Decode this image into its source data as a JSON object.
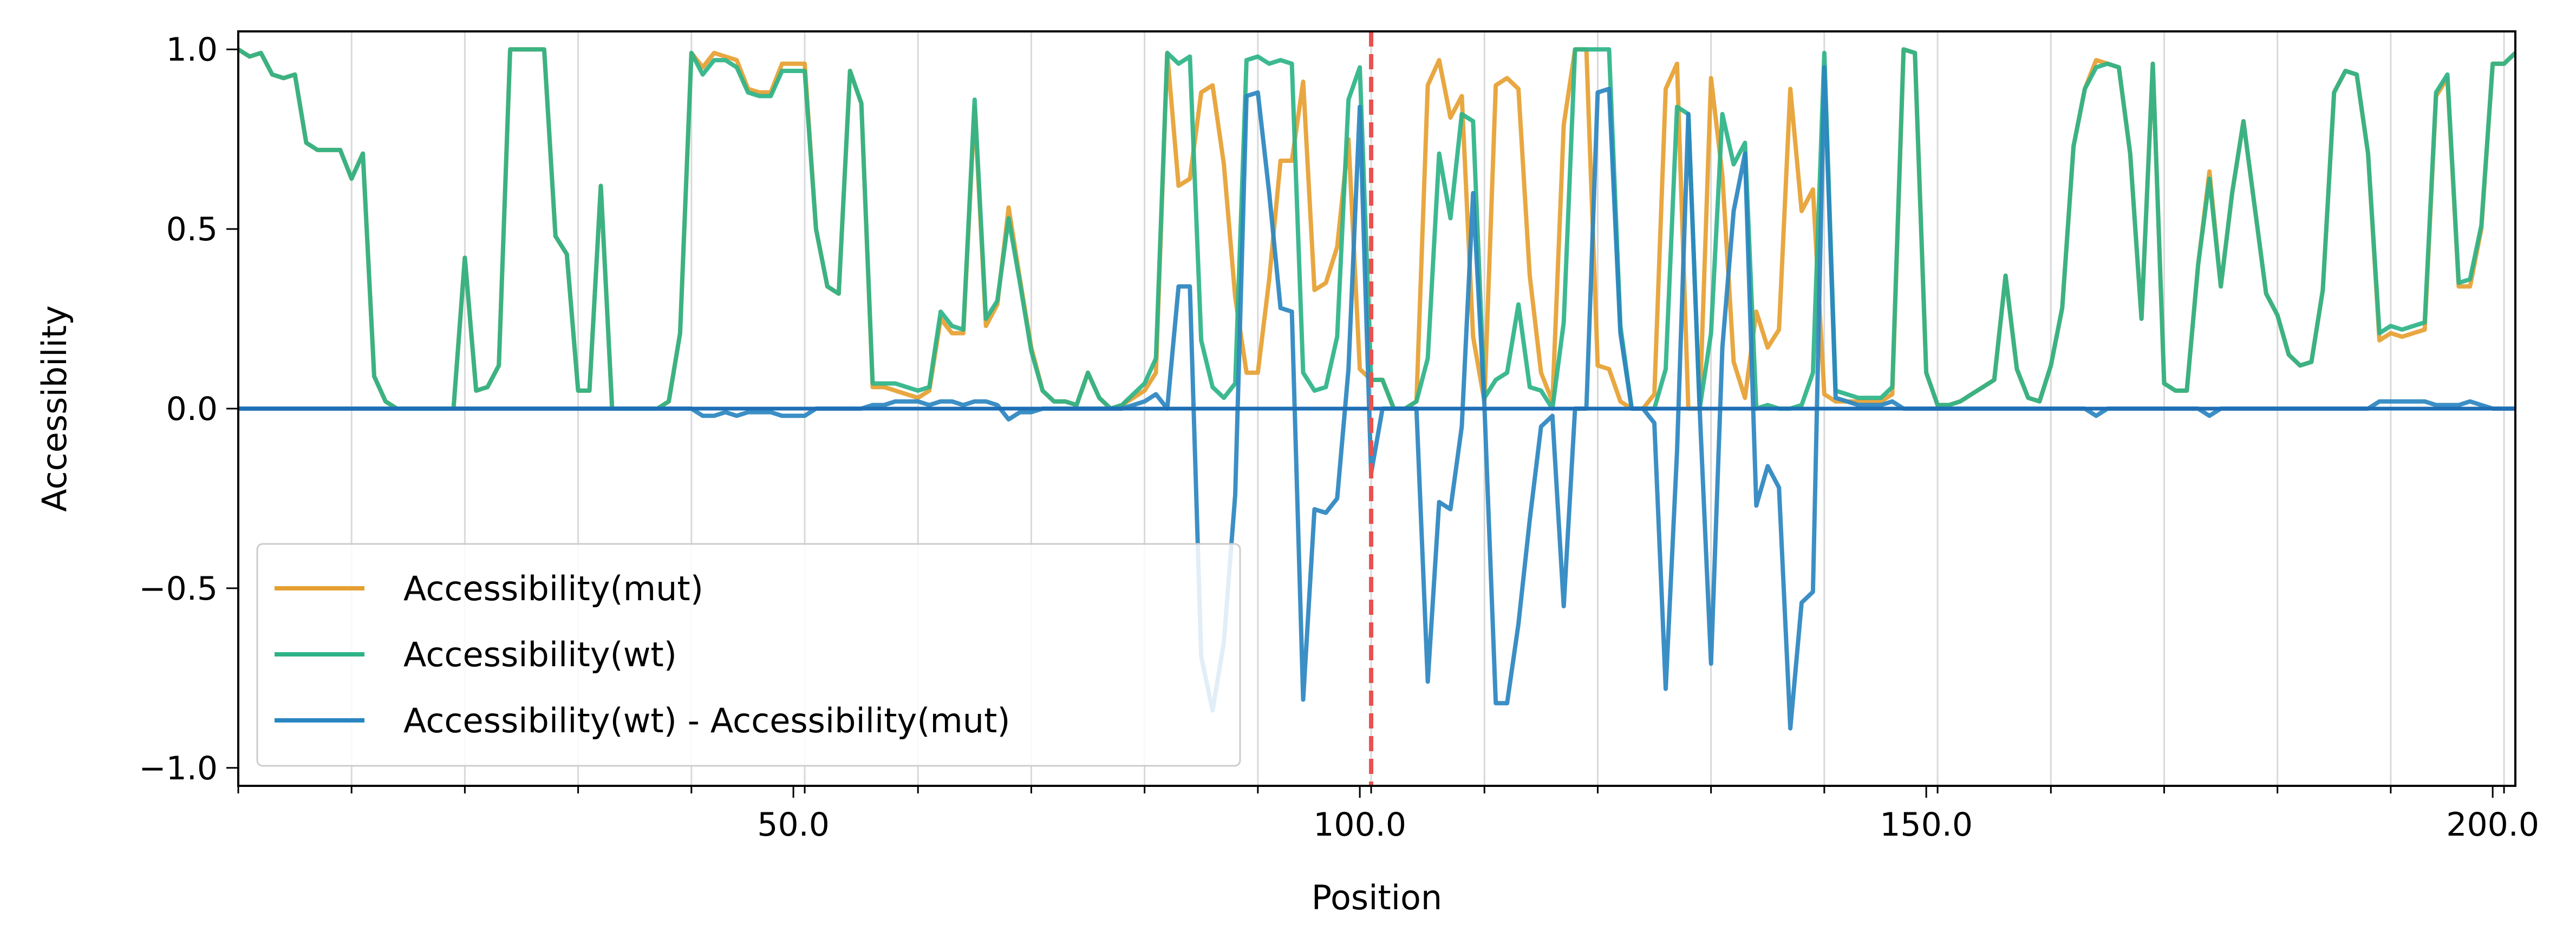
{
  "chart_data": {
    "type": "line",
    "title": "",
    "xlabel": "Position",
    "ylabel": "Accessibility",
    "xlim": [
      1,
      202
    ],
    "ylim": [
      -1.05,
      1.05
    ],
    "x_ticks": [
      50,
      100,
      150,
      200
    ],
    "x_tick_labels": [
      "50.0",
      "100.0",
      "150.0",
      "200.0"
    ],
    "x_minor_ticks": [
      1,
      11,
      21,
      31,
      41,
      51,
      61,
      71,
      81,
      91,
      101,
      111,
      121,
      131,
      141,
      151,
      161,
      171,
      181,
      191,
      201
    ],
    "y_ticks": [
      -1.0,
      -0.5,
      0.0,
      0.5,
      1.0
    ],
    "y_tick_labels": [
      "−1.0",
      "−0.5",
      "0.0",
      "0.5",
      "1.0"
    ],
    "grid": "vertical lines at x minor ticks",
    "legend_position": "lower-left",
    "mutation_position": 101,
    "mutation_line_color": "#e8524f",
    "series": [
      {
        "name": "Accessibility(mut)",
        "color": "#e69f31",
        "x": [
          1,
          2,
          3,
          4,
          5,
          6,
          7,
          8,
          9,
          10,
          11,
          12,
          13,
          14,
          15,
          16,
          17,
          18,
          19,
          20,
          21,
          22,
          23,
          24,
          25,
          26,
          27,
          28,
          29,
          30,
          31,
          32,
          33,
          34,
          35,
          36,
          37,
          38,
          39,
          40,
          41,
          42,
          43,
          44,
          45,
          46,
          47,
          48,
          49,
          50,
          51,
          52,
          53,
          54,
          55,
          56,
          57,
          58,
          59,
          60,
          61,
          62,
          63,
          64,
          65,
          66,
          67,
          68,
          69,
          70,
          71,
          72,
          73,
          74,
          75,
          76,
          77,
          78,
          79,
          80,
          81,
          82,
          83,
          84,
          85,
          86,
          87,
          88,
          89,
          90,
          91,
          92,
          93,
          94,
          95,
          96,
          97,
          98,
          99,
          100,
          101,
          102,
          103,
          104,
          105,
          106,
          107,
          108,
          109,
          110,
          111,
          112,
          113,
          114,
          115,
          116,
          117,
          118,
          119,
          120,
          121,
          122,
          123,
          124,
          125,
          126,
          127,
          128,
          129,
          130,
          131,
          132,
          133,
          134,
          135,
          136,
          137,
          138,
          139,
          140,
          141,
          142,
          143,
          144,
          145,
          146,
          147,
          148,
          149,
          150,
          151,
          152,
          153,
          154,
          155,
          156,
          157,
          158,
          159,
          160,
          161,
          162,
          163,
          164,
          165,
          166,
          167,
          168,
          169,
          170,
          171,
          172,
          173,
          174,
          175,
          176,
          177,
          178,
          179,
          180,
          181,
          182,
          183,
          184,
          185,
          186,
          187,
          188,
          189,
          190,
          191,
          192,
          193,
          194,
          195,
          196,
          197,
          198,
          199,
          200,
          201,
          202
        ],
        "values": [
          1.0,
          0.98,
          0.99,
          0.93,
          0.92,
          0.93,
          0.74,
          0.72,
          0.72,
          0.72,
          0.64,
          0.71,
          0.09,
          0.02,
          0.0,
          0.0,
          0.0,
          0.0,
          0.0,
          0.0,
          0.42,
          0.05,
          0.06,
          0.12,
          1.0,
          1.0,
          1.0,
          1.0,
          0.48,
          0.43,
          0.05,
          0.05,
          0.62,
          0.0,
          0.0,
          0.0,
          0.0,
          0.0,
          0.02,
          0.21,
          0.99,
          0.95,
          0.99,
          0.98,
          0.97,
          0.89,
          0.88,
          0.88,
          0.96,
          0.96,
          0.96,
          0.5,
          0.34,
          0.32,
          0.94,
          0.85,
          0.06,
          0.06,
          0.05,
          0.04,
          0.03,
          0.05,
          0.25,
          0.21,
          0.21,
          0.84,
          0.23,
          0.29,
          0.56,
          0.36,
          0.17,
          0.05,
          0.02,
          0.02,
          0.01,
          0.1,
          0.03,
          0.0,
          0.01,
          0.03,
          0.05,
          0.1,
          0.99,
          0.62,
          0.64,
          0.88,
          0.9,
          0.68,
          0.31,
          0.1,
          0.1,
          0.36,
          0.69,
          0.69,
          0.91,
          0.33,
          0.35,
          0.45,
          0.75,
          0.11,
          0.08,
          0.08,
          0.0,
          0.0,
          0.02,
          0.9,
          0.97,
          0.81,
          0.87,
          0.2,
          0.02,
          0.9,
          0.92,
          0.89,
          0.37,
          0.1,
          0.02,
          0.79,
          1.0,
          1.0,
          0.12,
          0.11,
          0.02,
          0.0,
          0.0,
          0.04,
          0.89,
          0.96,
          0.0,
          0.0,
          0.92,
          0.65,
          0.13,
          0.03,
          0.27,
          0.17,
          0.22,
          0.89,
          0.55,
          0.61,
          0.04,
          0.02,
          0.02,
          0.02,
          0.02,
          0.02,
          0.04,
          1.0,
          0.99,
          0.1,
          0.01,
          0.01,
          0.02,
          0.04,
          0.06,
          0.08,
          0.37,
          0.11,
          0.03,
          0.02,
          0.12,
          0.28,
          0.73,
          0.89,
          0.97,
          0.96,
          0.95,
          0.71,
          0.25,
          0.96,
          0.07,
          0.05,
          0.05,
          0.4,
          0.66,
          0.34,
          0.6,
          0.8,
          0.56,
          0.32,
          0.26,
          0.15,
          0.12,
          0.13,
          0.33,
          0.88,
          0.94,
          0.93,
          0.71,
          0.19,
          0.21,
          0.2,
          0.21,
          0.22,
          0.87,
          0.92,
          0.34,
          0.34,
          0.5,
          0.96,
          0.96,
          0.99
        ]
      },
      {
        "name": "Accessibility(wt)",
        "color": "#2db388",
        "x": [
          1,
          2,
          3,
          4,
          5,
          6,
          7,
          8,
          9,
          10,
          11,
          12,
          13,
          14,
          15,
          16,
          17,
          18,
          19,
          20,
          21,
          22,
          23,
          24,
          25,
          26,
          27,
          28,
          29,
          30,
          31,
          32,
          33,
          34,
          35,
          36,
          37,
          38,
          39,
          40,
          41,
          42,
          43,
          44,
          45,
          46,
          47,
          48,
          49,
          50,
          51,
          52,
          53,
          54,
          55,
          56,
          57,
          58,
          59,
          60,
          61,
          62,
          63,
          64,
          65,
          66,
          67,
          68,
          69,
          70,
          71,
          72,
          73,
          74,
          75,
          76,
          77,
          78,
          79,
          80,
          81,
          82,
          83,
          84,
          85,
          86,
          87,
          88,
          89,
          90,
          91,
          92,
          93,
          94,
          95,
          96,
          97,
          98,
          99,
          100,
          101,
          102,
          103,
          104,
          105,
          106,
          107,
          108,
          109,
          110,
          111,
          112,
          113,
          114,
          115,
          116,
          117,
          118,
          119,
          120,
          121,
          122,
          123,
          124,
          125,
          126,
          127,
          128,
          129,
          130,
          131,
          132,
          133,
          134,
          135,
          136,
          137,
          138,
          139,
          140,
          141,
          142,
          143,
          144,
          145,
          146,
          147,
          148,
          149,
          150,
          151,
          152,
          153,
          154,
          155,
          156,
          157,
          158,
          159,
          160,
          161,
          162,
          163,
          164,
          165,
          166,
          167,
          168,
          169,
          170,
          171,
          172,
          173,
          174,
          175,
          176,
          177,
          178,
          179,
          180,
          181,
          182,
          183,
          184,
          185,
          186,
          187,
          188,
          189,
          190,
          191,
          192,
          193,
          194,
          195,
          196,
          197,
          198,
          199,
          200,
          201,
          202
        ],
        "values": [
          1.0,
          0.98,
          0.99,
          0.93,
          0.92,
          0.93,
          0.74,
          0.72,
          0.72,
          0.72,
          0.64,
          0.71,
          0.09,
          0.02,
          0.0,
          0.0,
          0.0,
          0.0,
          0.0,
          0.0,
          0.42,
          0.05,
          0.06,
          0.12,
          1.0,
          1.0,
          1.0,
          1.0,
          0.48,
          0.43,
          0.05,
          0.05,
          0.62,
          0.0,
          0.0,
          0.0,
          0.0,
          0.0,
          0.02,
          0.21,
          0.99,
          0.93,
          0.97,
          0.97,
          0.95,
          0.88,
          0.87,
          0.87,
          0.94,
          0.94,
          0.94,
          0.5,
          0.34,
          0.32,
          0.94,
          0.85,
          0.07,
          0.07,
          0.07,
          0.06,
          0.05,
          0.06,
          0.27,
          0.23,
          0.22,
          0.86,
          0.25,
          0.3,
          0.53,
          0.35,
          0.16,
          0.05,
          0.02,
          0.02,
          0.01,
          0.1,
          0.03,
          0.0,
          0.01,
          0.04,
          0.07,
          0.14,
          0.99,
          0.96,
          0.98,
          0.19,
          0.06,
          0.03,
          0.07,
          0.97,
          0.98,
          0.96,
          0.97,
          0.96,
          0.1,
          0.05,
          0.06,
          0.2,
          0.86,
          0.95,
          0.08,
          0.08,
          0.0,
          0.0,
          0.02,
          0.14,
          0.71,
          0.53,
          0.82,
          0.8,
          0.03,
          0.08,
          0.1,
          0.29,
          0.06,
          0.05,
          0.0,
          0.24,
          1.0,
          1.0,
          1.0,
          1.0,
          0.23,
          0.0,
          0.0,
          0.0,
          0.11,
          0.84,
          0.82,
          0.0,
          0.21,
          0.82,
          0.68,
          0.74,
          0.0,
          0.01,
          0.0,
          0.0,
          0.01,
          0.1,
          0.99,
          0.05,
          0.04,
          0.03,
          0.03,
          0.03,
          0.06,
          1.0,
          0.99,
          0.1,
          0.01,
          0.01,
          0.02,
          0.04,
          0.06,
          0.08,
          0.37,
          0.11,
          0.03,
          0.02,
          0.12,
          0.28,
          0.73,
          0.89,
          0.95,
          0.96,
          0.95,
          0.71,
          0.25,
          0.96,
          0.07,
          0.05,
          0.05,
          0.4,
          0.64,
          0.34,
          0.6,
          0.8,
          0.56,
          0.32,
          0.26,
          0.15,
          0.12,
          0.13,
          0.33,
          0.88,
          0.94,
          0.93,
          0.71,
          0.21,
          0.23,
          0.22,
          0.23,
          0.24,
          0.88,
          0.93,
          0.35,
          0.36,
          0.51,
          0.96,
          0.96,
          0.99
        ]
      },
      {
        "name": "Accessibility(wt) - Accessibility(mut)",
        "color": "#2a86c0",
        "x": [
          1,
          2,
          3,
          4,
          5,
          6,
          7,
          8,
          9,
          10,
          11,
          12,
          13,
          14,
          15,
          16,
          17,
          18,
          19,
          20,
          21,
          22,
          23,
          24,
          25,
          26,
          27,
          28,
          29,
          30,
          31,
          32,
          33,
          34,
          35,
          36,
          37,
          38,
          39,
          40,
          41,
          42,
          43,
          44,
          45,
          46,
          47,
          48,
          49,
          50,
          51,
          52,
          53,
          54,
          55,
          56,
          57,
          58,
          59,
          60,
          61,
          62,
          63,
          64,
          65,
          66,
          67,
          68,
          69,
          70,
          71,
          72,
          73,
          74,
          75,
          76,
          77,
          78,
          79,
          80,
          81,
          82,
          83,
          84,
          85,
          86,
          87,
          88,
          89,
          90,
          91,
          92,
          93,
          94,
          95,
          96,
          97,
          98,
          99,
          100,
          101,
          102,
          103,
          104,
          105,
          106,
          107,
          108,
          109,
          110,
          111,
          112,
          113,
          114,
          115,
          116,
          117,
          118,
          119,
          120,
          121,
          122,
          123,
          124,
          125,
          126,
          127,
          128,
          129,
          130,
          131,
          132,
          133,
          134,
          135,
          136,
          137,
          138,
          139,
          140,
          141,
          142,
          143,
          144,
          145,
          146,
          147,
          148,
          149,
          150,
          151,
          152,
          153,
          154,
          155,
          156,
          157,
          158,
          159,
          160,
          161,
          162,
          163,
          164,
          165,
          166,
          167,
          168,
          169,
          170,
          171,
          172,
          173,
          174,
          175,
          176,
          177,
          178,
          179,
          180,
          181,
          182,
          183,
          184,
          185,
          186,
          187,
          188,
          189,
          190,
          191,
          192,
          193,
          194,
          195,
          196,
          197,
          198,
          199,
          200,
          201,
          202
        ],
        "values": [
          0.0,
          0.0,
          0.0,
          0.0,
          0.0,
          0.0,
          0.0,
          0.0,
          0.0,
          0.0,
          0.0,
          0.0,
          0.0,
          0.0,
          0.0,
          0.0,
          0.0,
          0.0,
          0.0,
          0.0,
          0.0,
          0.0,
          0.0,
          0.0,
          0.0,
          0.0,
          0.0,
          0.0,
          0.0,
          0.0,
          0.0,
          0.0,
          0.0,
          0.0,
          0.0,
          0.0,
          0.0,
          0.0,
          0.0,
          0.0,
          0.0,
          -0.02,
          -0.02,
          -0.01,
          -0.02,
          -0.01,
          -0.01,
          -0.01,
          -0.02,
          -0.02,
          -0.02,
          0.0,
          0.0,
          0.0,
          0.0,
          0.0,
          0.01,
          0.01,
          0.02,
          0.02,
          0.02,
          0.01,
          0.02,
          0.02,
          0.01,
          0.02,
          0.02,
          0.01,
          -0.03,
          -0.01,
          -0.01,
          0.0,
          0.0,
          0.0,
          0.0,
          0.0,
          0.0,
          0.0,
          0.0,
          0.01,
          0.02,
          0.04,
          0.0,
          0.34,
          0.34,
          -0.69,
          -0.84,
          -0.65,
          -0.24,
          0.87,
          0.88,
          0.6,
          0.28,
          0.27,
          -0.81,
          -0.28,
          -0.29,
          -0.25,
          0.11,
          0.84,
          -0.18,
          0.0,
          0.0,
          0.0,
          0.0,
          -0.76,
          -0.26,
          -0.28,
          -0.05,
          0.6,
          0.01,
          -0.82,
          -0.82,
          -0.6,
          -0.31,
          -0.05,
          -0.02,
          -0.55,
          0.0,
          0.0,
          0.88,
          0.89,
          0.21,
          0.0,
          0.0,
          -0.04,
          -0.78,
          -0.12,
          0.82,
          0.0,
          -0.71,
          0.17,
          0.55,
          0.71,
          -0.27,
          -0.16,
          -0.22,
          -0.89,
          -0.54,
          -0.51,
          0.95,
          0.03,
          0.02,
          0.01,
          0.01,
          0.01,
          0.02,
          0.0,
          0.0,
          0.0,
          0.0,
          0.0,
          0.0,
          0.0,
          0.0,
          0.0,
          0.0,
          0.0,
          0.0,
          0.0,
          0.0,
          0.0,
          0.0,
          0.0,
          -0.02,
          0.0,
          0.0,
          0.0,
          0.0,
          0.0,
          0.0,
          0.0,
          0.0,
          0.0,
          -0.02,
          0.0,
          0.0,
          0.0,
          0.0,
          0.0,
          0.0,
          0.0,
          0.0,
          0.0,
          0.0,
          0.0,
          0.0,
          0.0,
          0.0,
          0.02,
          0.02,
          0.02,
          0.02,
          0.02,
          0.01,
          0.01,
          0.01,
          0.02,
          0.01,
          0.0,
          0.0,
          0.0
        ]
      }
    ]
  }
}
